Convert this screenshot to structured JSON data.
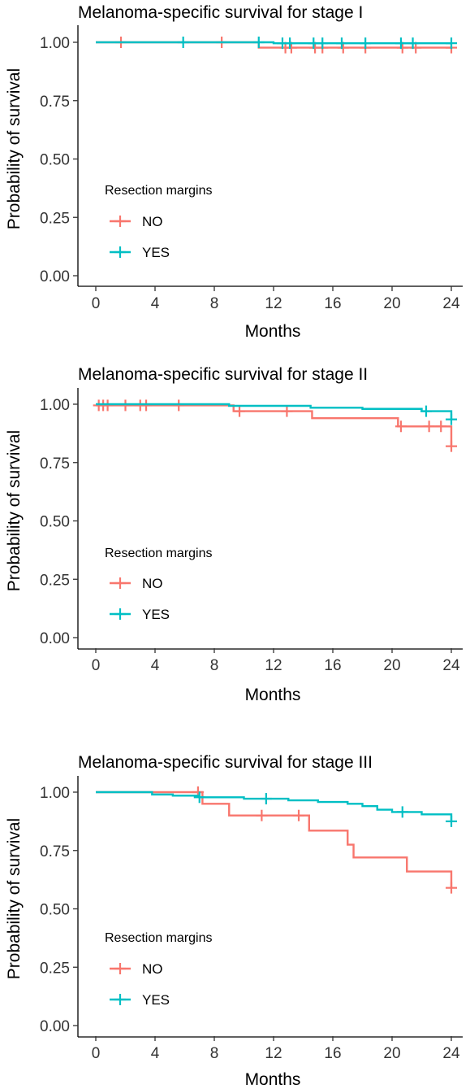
{
  "colors": {
    "NO": "#F8766D",
    "YES": "#00BFC4"
  },
  "chart_data": [
    {
      "type": "line",
      "subtype": "kaplan-meier step",
      "title": "Melanoma-specific survival for stage I",
      "xlabel": "Months",
      "ylabel": "Probability of survival",
      "xlim": [
        0,
        24
      ],
      "ylim": [
        0,
        1
      ],
      "xticks": [
        "0",
        "4",
        "8",
        "12",
        "16",
        "20",
        "24"
      ],
      "yticks": [
        "0.00",
        "0.25",
        "0.50",
        "0.75",
        "1.00"
      ],
      "grid": false,
      "legend_position": "left-middle",
      "legend": {
        "title": "Resection margins",
        "entries": [
          "NO",
          "YES"
        ]
      },
      "series": [
        {
          "name": "NO",
          "steps": [
            [
              0,
              1.0
            ],
            [
              11.0,
              0.977
            ],
            [
              24,
              0.977
            ]
          ],
          "censored": [
            [
              1.7,
              1.0
            ],
            [
              8.5,
              1.0
            ],
            [
              12.8,
              0.977
            ],
            [
              13.2,
              0.977
            ],
            [
              14.8,
              0.977
            ],
            [
              15.3,
              0.977
            ],
            [
              16.7,
              0.977
            ],
            [
              18.2,
              0.977
            ],
            [
              20.7,
              0.977
            ],
            [
              21.6,
              0.977
            ],
            [
              24.0,
              0.977
            ]
          ]
        },
        {
          "name": "YES",
          "steps": [
            [
              0,
              1.0
            ],
            [
              12.0,
              0.996
            ],
            [
              24,
              0.996
            ]
          ],
          "censored": [
            [
              5.9,
              1.0
            ],
            [
              11.0,
              1.0
            ],
            [
              12.6,
              0.996
            ],
            [
              13.1,
              0.996
            ],
            [
              14.7,
              0.996
            ],
            [
              15.3,
              0.996
            ],
            [
              16.6,
              0.996
            ],
            [
              18.2,
              0.996
            ],
            [
              20.6,
              0.996
            ],
            [
              21.4,
              0.996
            ],
            [
              24.0,
              0.996
            ]
          ]
        }
      ]
    },
    {
      "type": "line",
      "subtype": "kaplan-meier step",
      "title": "Melanoma-specific survival for stage II",
      "xlabel": "Months",
      "ylabel": "Probability of survival",
      "xlim": [
        0,
        24
      ],
      "ylim": [
        0,
        1
      ],
      "xticks": [
        "0",
        "4",
        "8",
        "12",
        "16",
        "20",
        "24"
      ],
      "yticks": [
        "0.00",
        "0.25",
        "0.50",
        "0.75",
        "1.00"
      ],
      "grid": false,
      "legend_position": "left-middle",
      "legend": {
        "title": "Resection margins",
        "entries": [
          "NO",
          "YES"
        ]
      },
      "series": [
        {
          "name": "NO",
          "steps": [
            [
              0,
              0.995
            ],
            [
              9.3,
              0.97
            ],
            [
              14.6,
              0.94
            ],
            [
              20.4,
              0.905
            ],
            [
              24.0,
              0.82
            ],
            [
              24,
              0.82
            ]
          ],
          "censored": [
            [
              0.2,
              0.995
            ],
            [
              0.5,
              0.995
            ],
            [
              0.8,
              0.995
            ],
            [
              2.0,
              0.995
            ],
            [
              3.0,
              0.995
            ],
            [
              3.4,
              0.995
            ],
            [
              5.6,
              0.995
            ],
            [
              9.7,
              0.97
            ],
            [
              12.9,
              0.97
            ],
            [
              20.6,
              0.905
            ],
            [
              22.5,
              0.905
            ],
            [
              23.3,
              0.905
            ],
            [
              24.0,
              0.82
            ]
          ]
        },
        {
          "name": "YES",
          "steps": [
            [
              0,
              1.0
            ],
            [
              9.0,
              0.993
            ],
            [
              14.5,
              0.985
            ],
            [
              18.0,
              0.98
            ],
            [
              22.0,
              0.97
            ],
            [
              24.0,
              0.935
            ],
            [
              24,
              0.935
            ]
          ],
          "censored": [
            [
              22.3,
              0.97
            ],
            [
              24.0,
              0.935
            ]
          ]
        }
      ]
    },
    {
      "type": "line",
      "subtype": "kaplan-meier step",
      "title": "Melanoma-specific survival for stage III",
      "xlabel": "Months",
      "ylabel": "Probability of survival",
      "xlim": [
        0,
        24
      ],
      "ylim": [
        0,
        1
      ],
      "xticks": [
        "0",
        "4",
        "8",
        "12",
        "16",
        "20",
        "24"
      ],
      "yticks": [
        "0.00",
        "0.25",
        "0.50",
        "0.75",
        "1.00"
      ],
      "grid": false,
      "legend_position": "left-middle",
      "legend": {
        "title": "Resection margins",
        "entries": [
          "NO",
          "YES"
        ]
      },
      "series": [
        {
          "name": "NO",
          "steps": [
            [
              0,
              1.0
            ],
            [
              7.2,
              0.95
            ],
            [
              9.0,
              0.9
            ],
            [
              14.4,
              0.835
            ],
            [
              17.0,
              0.775
            ],
            [
              17.4,
              0.72
            ],
            [
              21.0,
              0.66
            ],
            [
              24.0,
              0.59
            ],
            [
              24,
              0.59
            ]
          ],
          "censored": [
            [
              6.9,
              1.0
            ],
            [
              11.2,
              0.9
            ],
            [
              13.7,
              0.9
            ],
            [
              24.0,
              0.59
            ]
          ]
        },
        {
          "name": "YES",
          "steps": [
            [
              0,
              1.0
            ],
            [
              3.8,
              0.99
            ],
            [
              5.2,
              0.985
            ],
            [
              7.0,
              0.978
            ],
            [
              10.0,
              0.972
            ],
            [
              13.0,
              0.965
            ],
            [
              15.0,
              0.958
            ],
            [
              17.0,
              0.95
            ],
            [
              18.0,
              0.94
            ],
            [
              19.0,
              0.925
            ],
            [
              20.0,
              0.915
            ],
            [
              22.0,
              0.905
            ],
            [
              24.0,
              0.875
            ],
            [
              24,
              0.875
            ]
          ],
          "censored": [
            [
              7.0,
              0.978
            ],
            [
              11.5,
              0.972
            ],
            [
              20.7,
              0.915
            ],
            [
              24.0,
              0.875
            ]
          ]
        }
      ]
    }
  ]
}
